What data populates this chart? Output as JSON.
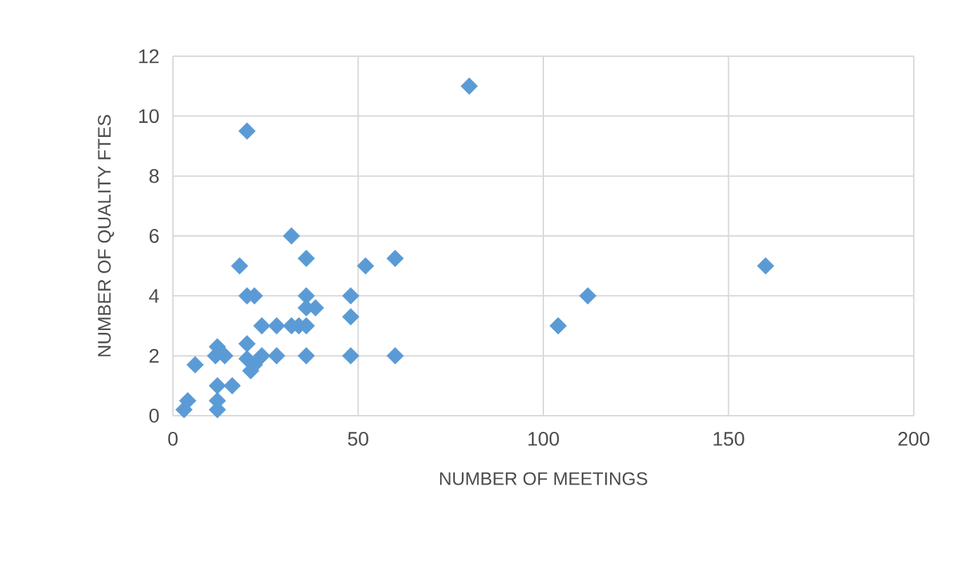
{
  "chart_data": {
    "type": "scatter",
    "xlabel": "NUMBER OF MEETINGS",
    "ylabel": "NUMBER OF QUALITY FTES",
    "xlim": [
      0,
      200
    ],
    "xticks": [
      0,
      50,
      100,
      150,
      200
    ],
    "ylim": [
      0,
      12
    ],
    "yticks": [
      0,
      2,
      4,
      6,
      8,
      10,
      12
    ],
    "grid": true,
    "marker": "diamond",
    "series": [
      {
        "color": "#5b9bd5",
        "x": [
          80,
          20,
          32,
          36,
          18,
          52,
          60,
          160,
          112,
          104,
          20,
          22,
          36,
          48,
          48,
          36,
          38.5,
          24,
          28,
          32,
          34,
          36,
          20,
          12,
          14,
          11.5,
          6,
          20,
          22,
          21,
          24,
          28,
          36,
          48,
          60,
          12,
          16,
          12,
          12,
          4,
          3
        ],
        "values": [
          11,
          9.5,
          6,
          5.25,
          5,
          5,
          5.25,
          5,
          4,
          3,
          4,
          4,
          4,
          4,
          3.3,
          3.6,
          3.6,
          3,
          3,
          3,
          3,
          3,
          2.4,
          2.3,
          2,
          2,
          1.7,
          1.9,
          1.7,
          1.5,
          2,
          2,
          2,
          2,
          2,
          1,
          1,
          0.5,
          0.2,
          0.5,
          0.2
        ]
      }
    ]
  }
}
